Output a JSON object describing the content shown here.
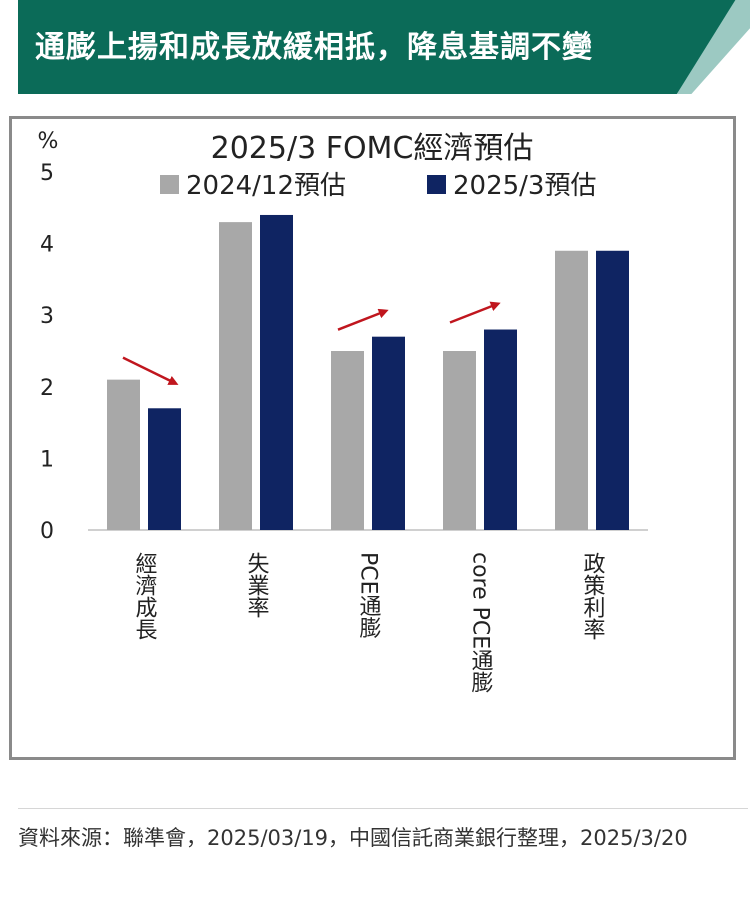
{
  "header": {
    "title": "通膨上揚和成長放緩相抵，降息基調不變"
  },
  "source": {
    "text": "資料來源：聯準會，2025/03/19，中國信託商業銀行整理，2025/3/20"
  },
  "chart_data": {
    "type": "bar",
    "title": "2025/3 FOMC經濟預估",
    "ylabel": "%",
    "ylim": [
      0,
      5
    ],
    "yticks": [
      0,
      1,
      2,
      3,
      4,
      5
    ],
    "categories": [
      "經濟成長",
      "失業率",
      "PCE通膨",
      "core PCE通膨",
      "政策利率"
    ],
    "series": [
      {
        "name": "2024/12預估",
        "color": "#a8a8a8",
        "values": [
          2.1,
          4.3,
          2.5,
          2.5,
          3.9
        ]
      },
      {
        "name": "2025/3預估",
        "color": "#0f2462",
        "values": [
          1.7,
          4.4,
          2.7,
          2.8,
          3.9
        ]
      }
    ],
    "annotations": [
      {
        "category": "經濟成長",
        "direction": "down",
        "color": "#c0161e"
      },
      {
        "category": "PCE通膨",
        "direction": "up",
        "color": "#c0161e"
      },
      {
        "category": "core PCE通膨",
        "direction": "up",
        "color": "#c0161e"
      }
    ],
    "legend_position": "top",
    "grid": false
  }
}
